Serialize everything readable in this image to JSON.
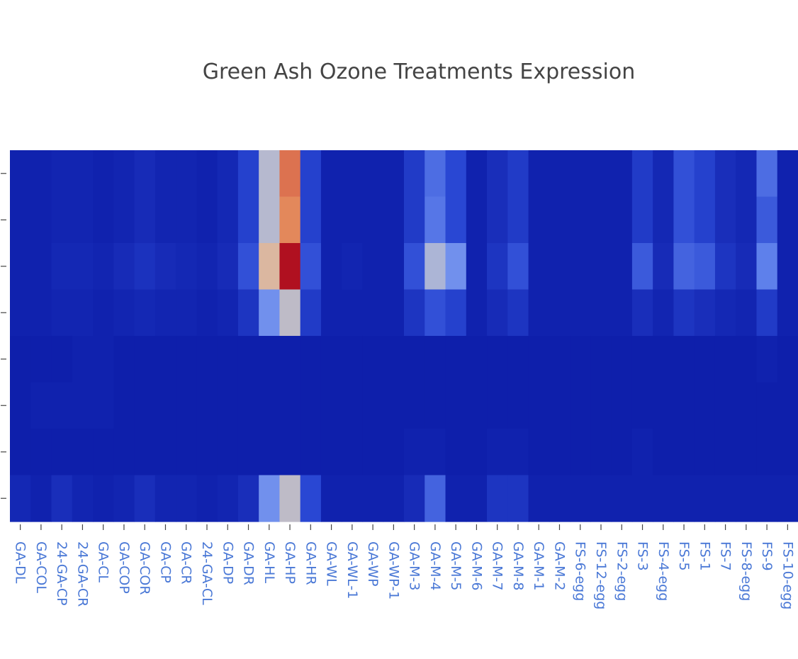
{
  "chart_data": {
    "type": "heatmap",
    "title": "Green Ash Ozone Treatments Expression",
    "x": [
      "GA-DL",
      "GA-COL",
      "24-GA-CP",
      "24-GA-CR",
      "GA-CL",
      "GA-COP",
      "GA-COR",
      "GA-CP",
      "GA-CR",
      "24-GA-CL",
      "GA-DP",
      "GA-DR",
      "GA-HL",
      "GA-HP",
      "GA-HR",
      "GA-WL",
      "GA-WL-1",
      "GA-WP",
      "GA-WP-1",
      "GA-M-3",
      "GA-M-4",
      "GA-M-5",
      "GA-M-6",
      "GA-M-7",
      "GA-M-8",
      "GA-M-1",
      "GA-M-2",
      "FS-6-egg",
      "FS-12-egg",
      "FS-2-egg",
      "FS-3",
      "FS-4-egg",
      "FS-5",
      "FS-1",
      "FS-7",
      "FS-8-egg",
      "FS-9",
      "FS-10-egg"
    ],
    "y_tick_count": 8,
    "colorscale": [
      "#0c1ca8",
      "#2a48d4",
      "#6a8cf0",
      "#b0b8d4",
      "#d8c0b0",
      "#e69360",
      "#d8674a",
      "#b01020"
    ],
    "z": [
      [
        0.02,
        0.02,
        0.03,
        0.03,
        0.02,
        0.03,
        0.05,
        0.03,
        0.03,
        0.02,
        0.04,
        0.12,
        0.45,
        0.82,
        0.12,
        0.02,
        0.02,
        0.02,
        0.02,
        0.1,
        0.22,
        0.14,
        0.02,
        0.06,
        0.1,
        0.02,
        0.02,
        0.02,
        0.02,
        0.02,
        0.1,
        0.04,
        0.16,
        0.12,
        0.06,
        0.04,
        0.22,
        0.02
      ],
      [
        0.02,
        0.02,
        0.03,
        0.03,
        0.02,
        0.03,
        0.05,
        0.03,
        0.03,
        0.02,
        0.04,
        0.12,
        0.45,
        0.75,
        0.12,
        0.02,
        0.02,
        0.02,
        0.02,
        0.1,
        0.24,
        0.14,
        0.02,
        0.06,
        0.1,
        0.02,
        0.02,
        0.02,
        0.02,
        0.02,
        0.1,
        0.04,
        0.16,
        0.12,
        0.06,
        0.04,
        0.18,
        0.02
      ],
      [
        0.02,
        0.02,
        0.04,
        0.04,
        0.03,
        0.05,
        0.07,
        0.05,
        0.04,
        0.03,
        0.05,
        0.16,
        0.6,
        1.0,
        0.16,
        0.02,
        0.03,
        0.02,
        0.02,
        0.16,
        0.42,
        0.3,
        0.02,
        0.08,
        0.16,
        0.02,
        0.02,
        0.02,
        0.02,
        0.02,
        0.18,
        0.05,
        0.2,
        0.18,
        0.08,
        0.05,
        0.26,
        0.02
      ],
      [
        0.02,
        0.02,
        0.03,
        0.03,
        0.02,
        0.03,
        0.04,
        0.03,
        0.03,
        0.02,
        0.03,
        0.08,
        0.3,
        0.48,
        0.1,
        0.02,
        0.02,
        0.02,
        0.02,
        0.08,
        0.16,
        0.12,
        0.02,
        0.05,
        0.08,
        0.02,
        0.02,
        0.02,
        0.02,
        0.02,
        0.06,
        0.03,
        0.08,
        0.06,
        0.04,
        0.03,
        0.1,
        0.02
      ],
      [
        0.01,
        0.01,
        0.01,
        0.02,
        0.02,
        0.01,
        0.01,
        0.01,
        0.01,
        0.01,
        0.01,
        0.01,
        0.01,
        0.01,
        0.01,
        0.01,
        0.01,
        0.01,
        0.01,
        0.01,
        0.01,
        0.01,
        0.01,
        0.01,
        0.01,
        0.01,
        0.01,
        0.01,
        0.01,
        0.01,
        0.01,
        0.01,
        0.01,
        0.01,
        0.01,
        0.01,
        0.02,
        0.01
      ],
      [
        0.01,
        0.02,
        0.02,
        0.02,
        0.02,
        0.01,
        0.01,
        0.01,
        0.01,
        0.01,
        0.01,
        0.01,
        0.01,
        0.01,
        0.01,
        0.01,
        0.01,
        0.01,
        0.01,
        0.01,
        0.01,
        0.01,
        0.01,
        0.01,
        0.01,
        0.01,
        0.01,
        0.01,
        0.01,
        0.01,
        0.01,
        0.01,
        0.01,
        0.01,
        0.01,
        0.01,
        0.01,
        0.01
      ],
      [
        0.01,
        0.01,
        0.01,
        0.01,
        0.01,
        0.01,
        0.01,
        0.01,
        0.01,
        0.01,
        0.01,
        0.01,
        0.01,
        0.01,
        0.01,
        0.01,
        0.01,
        0.01,
        0.01,
        0.02,
        0.02,
        0.01,
        0.01,
        0.02,
        0.02,
        0.01,
        0.01,
        0.01,
        0.01,
        0.01,
        0.02,
        0.01,
        0.01,
        0.01,
        0.01,
        0.01,
        0.01,
        0.01
      ],
      [
        0.04,
        0.02,
        0.06,
        0.03,
        0.02,
        0.03,
        0.06,
        0.03,
        0.03,
        0.02,
        0.03,
        0.06,
        0.3,
        0.48,
        0.14,
        0.02,
        0.02,
        0.02,
        0.02,
        0.05,
        0.2,
        0.02,
        0.02,
        0.08,
        0.08,
        0.02,
        0.02,
        0.02,
        0.02,
        0.02,
        0.02,
        0.02,
        0.02,
        0.02,
        0.02,
        0.02,
        0.02,
        0.02
      ]
    ]
  }
}
